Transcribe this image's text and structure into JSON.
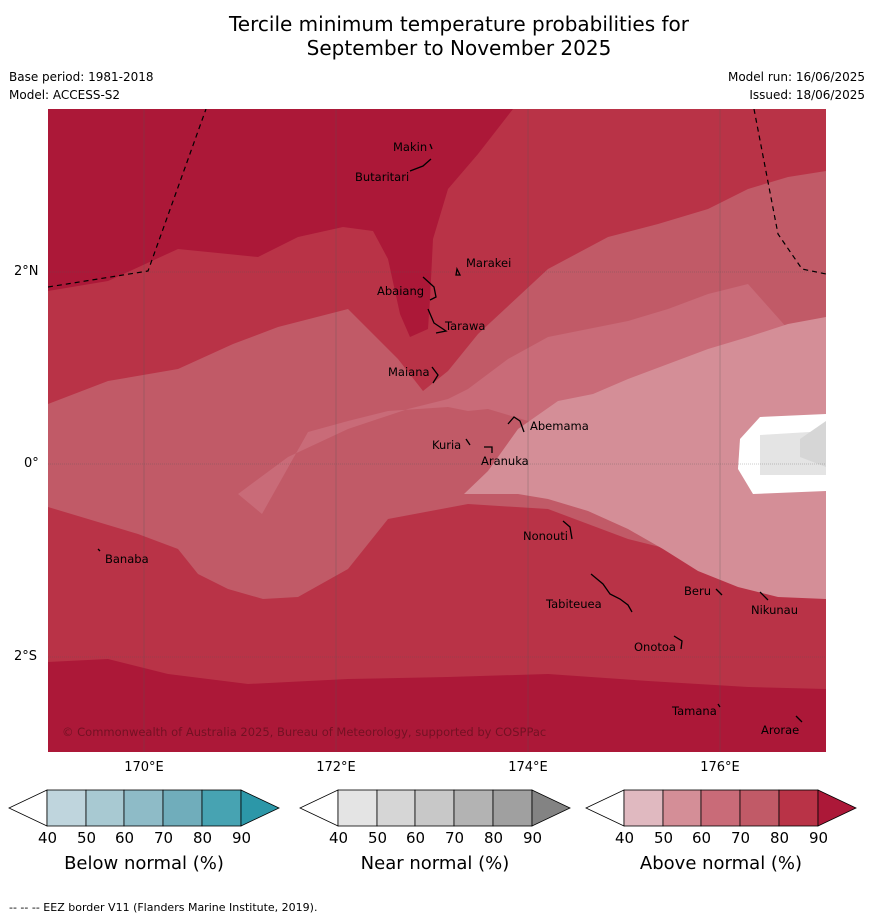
{
  "title_line1": "Tercile minimum temperature probabilities for",
  "title_line2": "September to November 2025",
  "meta": {
    "base_period": "Base period: 1981-2018",
    "model": "Model: ACCESS-S2",
    "model_run": "Model run: 16/06/2025",
    "issued": "Issued: 18/06/2025"
  },
  "map": {
    "lat_labels": [
      "2°N",
      "0°",
      "2°S"
    ],
    "lon_labels": [
      "170°E",
      "172°E",
      "174°E",
      "176°E"
    ],
    "copyright": "© Commonwealth of Australia 2025, Bureau of Meteorology, supported by COSPPac",
    "places": [
      "Makin",
      "Butaritari",
      "Marakei",
      "Abaiang",
      "Tarawa",
      "Maiana",
      "Abemama",
      "Kuria",
      "Aranuka",
      "Banaba",
      "Nonouti",
      "Beru",
      "Nikunau",
      "Tabiteuea",
      "Onotoa",
      "Tamana",
      "Arorae"
    ]
  },
  "colorbars": [
    {
      "title": "Below normal (%)",
      "ticks": [
        "40",
        "50",
        "60",
        "70",
        "80",
        "90"
      ],
      "colors": [
        "#ffffff",
        "#bfd5dd",
        "#a8c9d2",
        "#8ebbc7",
        "#70adbb",
        "#47a3b2",
        "#2c97a8"
      ]
    },
    {
      "title": "Near normal (%)",
      "ticks": [
        "40",
        "50",
        "60",
        "70",
        "80",
        "90"
      ],
      "colors": [
        "#ffffff",
        "#e4e4e4",
        "#d6d6d6",
        "#c8c8c8",
        "#b3b3b3",
        "#a0a0a0",
        "#838383"
      ]
    },
    {
      "title": "Above normal (%)",
      "ticks": [
        "40",
        "50",
        "60",
        "70",
        "80",
        "90"
      ],
      "colors": [
        "#ffffff",
        "#e0b9c0",
        "#d48e97",
        "#c96b78",
        "#c15a67",
        "#b93347",
        "#ac1838"
      ]
    }
  ],
  "footer": "-- -- -- EEZ border V11 (Flanders Marine Institute, 2019)."
}
